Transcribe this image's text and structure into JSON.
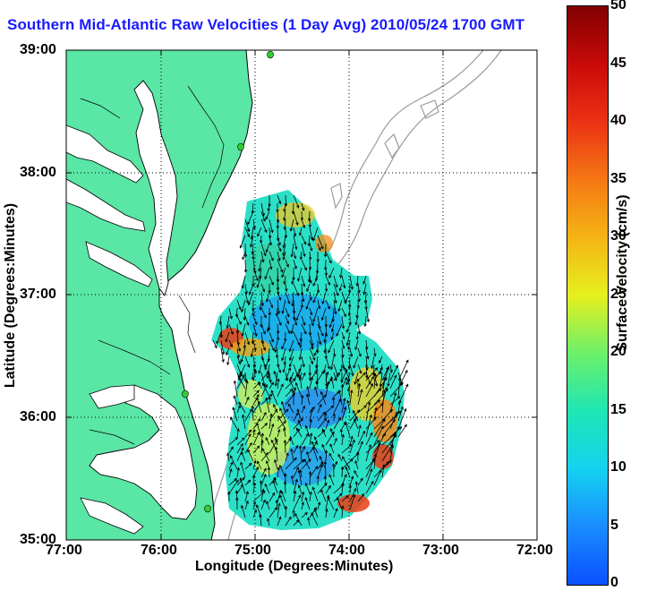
{
  "title": "Southern Mid-Atlantic Raw Velocities (1 Day Avg) 2010/05/24 1700 GMT",
  "x_axis": {
    "label": "Longitude (Degrees:Minutes)",
    "ticks": [
      "77:00",
      "76:00",
      "75:00",
      "74:00",
      "73:00",
      "72:00"
    ]
  },
  "y_axis": {
    "label": "Latitude (Degrees:Minutes)",
    "ticks": [
      "39:00",
      "38:00",
      "37:00",
      "36:00",
      "35:00"
    ]
  },
  "colorbar": {
    "label": "Surface Velocity (cm/s)",
    "ticks": [
      "50",
      "45",
      "40",
      "35",
      "30",
      "25",
      "20",
      "15",
      "10",
      "5",
      "0"
    ],
    "min": 0,
    "max": 50,
    "colormap": "jet"
  },
  "map": {
    "region": "Southern Mid-Atlantic Bight",
    "lon_range": [
      -77,
      -72
    ],
    "lat_range": [
      35,
      39
    ],
    "land_color": "#5ae6a5",
    "grid": "dotted",
    "vector_color": "#000000",
    "station_marker_color": "#33cc33"
  }
}
